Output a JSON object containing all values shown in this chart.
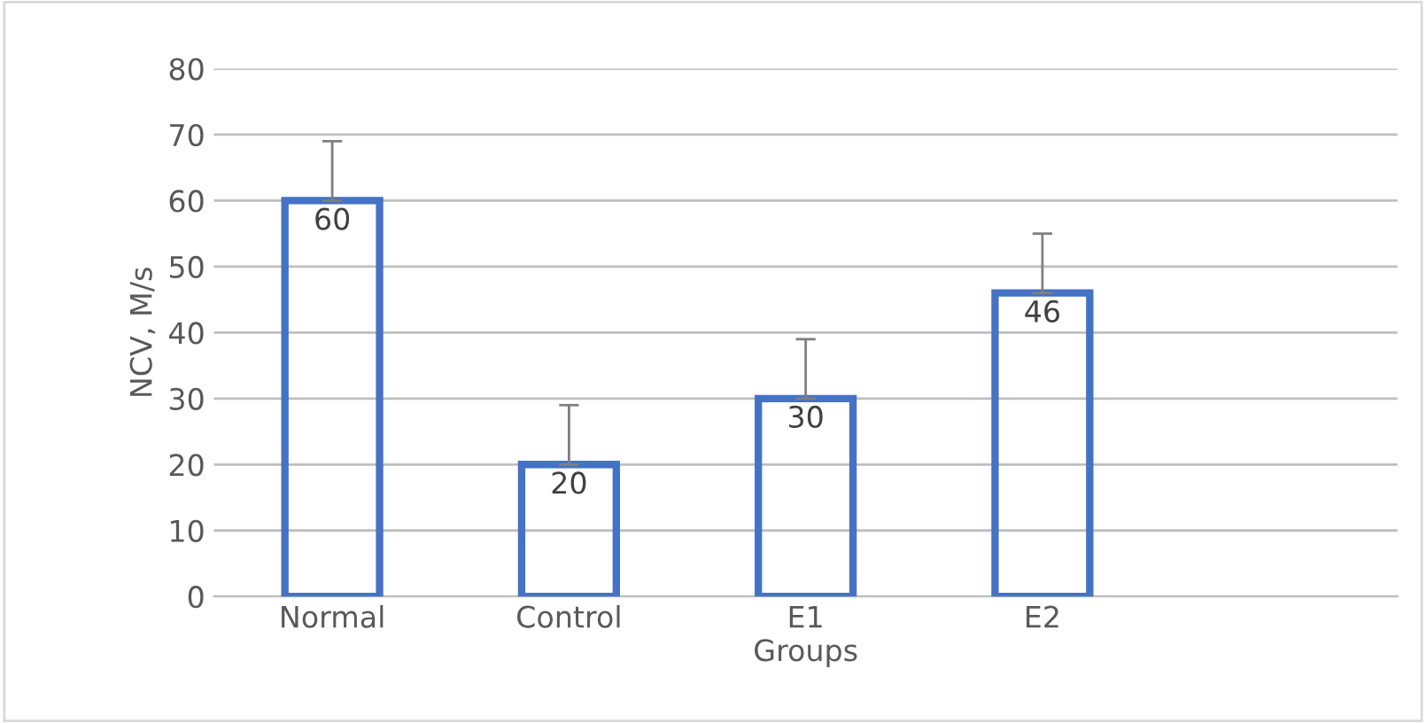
{
  "chart_data": {
    "type": "bar",
    "xlabel": "Groups",
    "ylabel": "NCV, M/s",
    "categories": [
      "Normal",
      "Control",
      "E1",
      "E2",
      null
    ],
    "series": [
      {
        "color": "#4472c4",
        "values": [
          60,
          20,
          30,
          46,
          null
        ],
        "errors": [
          [
            60,
            69
          ],
          [
            20,
            29
          ],
          [
            30,
            39
          ],
          [
            46,
            55
          ],
          null
        ]
      }
    ],
    "ylim": [
      0,
      80
    ],
    "yticks": [
      0,
      10,
      20,
      30,
      40,
      50,
      60,
      70,
      80
    ],
    "grid": "y",
    "data_labels": true
  }
}
